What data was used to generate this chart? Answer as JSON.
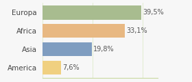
{
  "categories": [
    "Europa",
    "Africa",
    "Asia",
    "America"
  ],
  "values": [
    39.5,
    33.1,
    19.8,
    7.6
  ],
  "labels": [
    "39,5%",
    "33,1%",
    "19,8%",
    "7,6%"
  ],
  "bar_colors": [
    "#a8bc8f",
    "#e8b882",
    "#7f9dc0",
    "#f0d080"
  ],
  "background_color": "#f7f7f7",
  "xlim": [
    0,
    46
  ],
  "figsize": [
    2.8,
    1.2
  ],
  "dpi": 100,
  "bar_height": 0.75,
  "label_fontsize": 7.0,
  "ytick_fontsize": 7.5
}
